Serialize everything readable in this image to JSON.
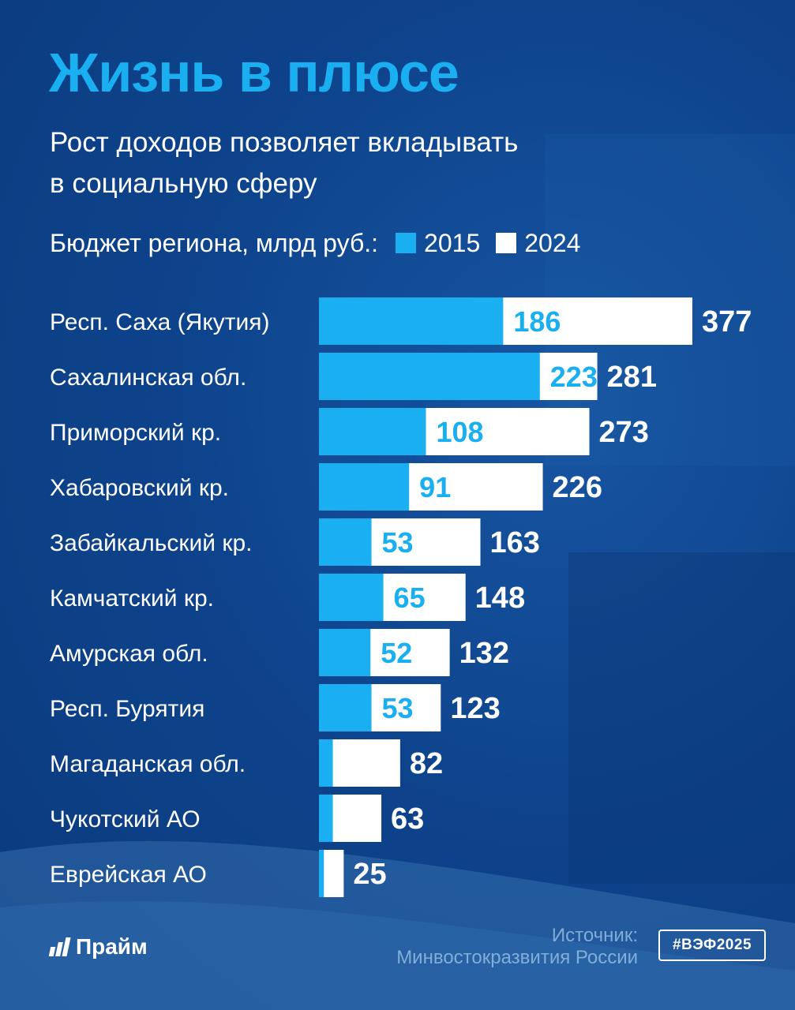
{
  "title": "Жизнь в плюсе",
  "subtitle_line1": "Рост доходов позволяет вкладывать",
  "subtitle_line2": "в социальную сферу",
  "legend": {
    "label": "Бюджет региона, млрд руб.:",
    "items": [
      {
        "name": "2015",
        "color": "#1aaff0"
      },
      {
        "name": "2024",
        "color": "#ffffff"
      }
    ]
  },
  "chart_data": {
    "type": "bar",
    "orientation": "horizontal",
    "categories": [
      "Респ. Саха (Якутия)",
      "Сахалинская обл.",
      "Приморский кр.",
      "Хабаровский кр.",
      "Забайкальский кр.",
      "Камчатский кр.",
      "Амурская обл.",
      "Респ. Бурятия",
      "Магаданская обл.",
      "Чукотский АО",
      "Еврейская АО"
    ],
    "series": [
      {
        "name": "2015",
        "color": "#1aaff0",
        "values": [
          186,
          223,
          108,
          91,
          53,
          65,
          52,
          53,
          14,
          14,
          5
        ],
        "labels_shown": [
          true,
          true,
          true,
          true,
          true,
          true,
          true,
          true,
          false,
          false,
          false
        ]
      },
      {
        "name": "2024",
        "color": "#ffffff",
        "values": [
          377,
          281,
          273,
          226,
          163,
          148,
          132,
          123,
          82,
          63,
          25
        ],
        "labels_shown": [
          true,
          true,
          true,
          true,
          true,
          true,
          true,
          true,
          true,
          true,
          true
        ]
      }
    ],
    "overlay": true,
    "xlim": [
      0,
      377
    ],
    "grid": false,
    "legend_position": "top"
  },
  "logo": "Прайм",
  "source_label": "Источник:",
  "source_value": "Минвостокразвития России",
  "hashtag": "#ВЭФ2025"
}
